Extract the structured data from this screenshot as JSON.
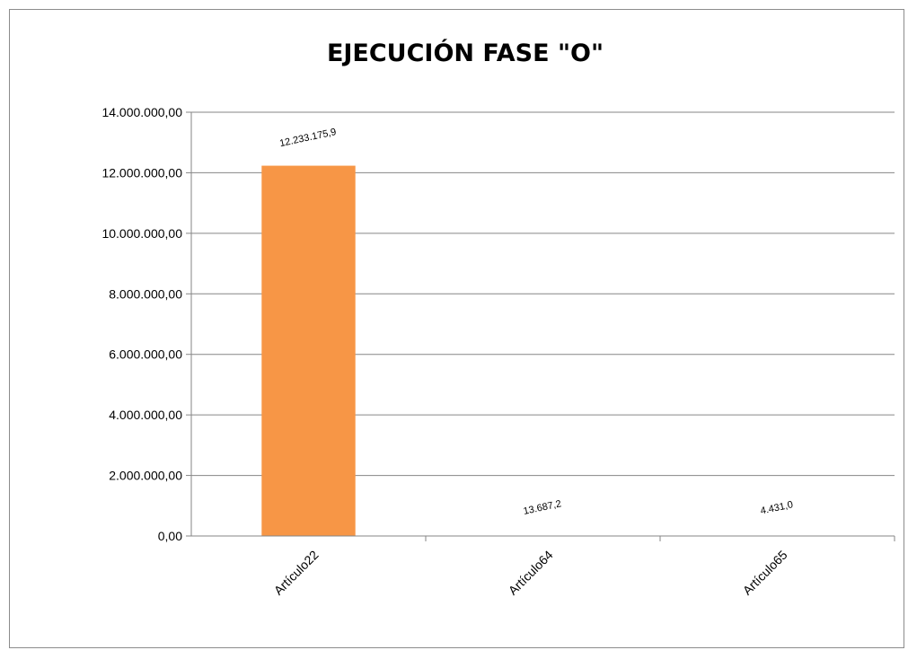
{
  "chart_data": {
    "type": "bar",
    "title": "EJECUCIÓN FASE \"O\"",
    "xlabel": "",
    "ylabel": "",
    "categories": [
      "Artículo22",
      "Artículo64",
      "Artículo65"
    ],
    "values": [
      12233175.9,
      13687.2,
      4431.0
    ],
    "data_labels": [
      "12.233.175,9",
      "13.687,2",
      "4.431,0"
    ],
    "ylim": [
      0,
      14000000
    ],
    "yticks": [
      0,
      2000000,
      4000000,
      6000000,
      8000000,
      10000000,
      12000000,
      14000000
    ],
    "ytick_labels": [
      "0,00",
      "2.000.000,00",
      "4.000.000,00",
      "6.000.000,00",
      "8.000.000,00",
      "10.000.000,00",
      "12.000.000,00",
      "14.000.000,00"
    ],
    "grid": true,
    "legend": "none",
    "bar_color": "#f79646",
    "gridline_color": "#868686"
  }
}
